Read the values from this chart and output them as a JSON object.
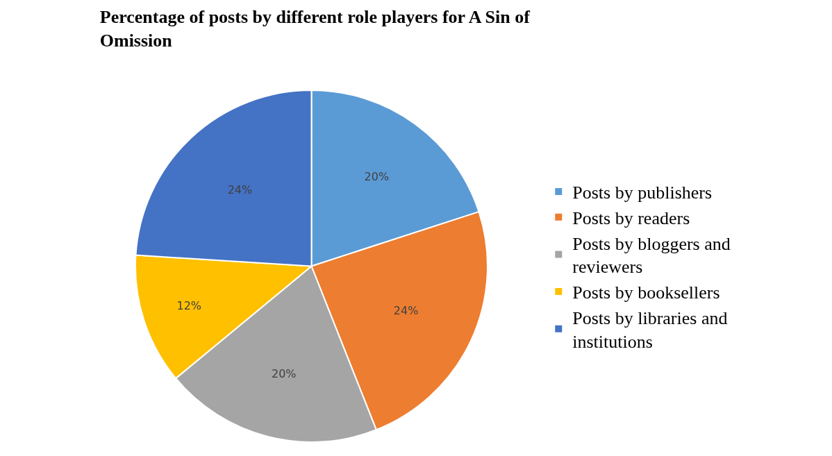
{
  "chart_data": {
    "type": "pie",
    "title": "Percentage of posts by different role players for A Sin of Omission",
    "categories": [
      "Posts by publishers",
      "Posts by readers",
      "Posts by bloggers and reviewers",
      "Posts by booksellers",
      "Posts by libraries and institutions"
    ],
    "values": [
      20,
      24,
      20,
      12,
      24
    ],
    "value_labels": [
      "20%",
      "24%",
      "20%",
      "12%",
      "24%"
    ],
    "colors": [
      "#5b9bd5",
      "#ed7d31",
      "#a5a5a5",
      "#ffc000",
      "#4472c4"
    ],
    "legend": "right"
  }
}
